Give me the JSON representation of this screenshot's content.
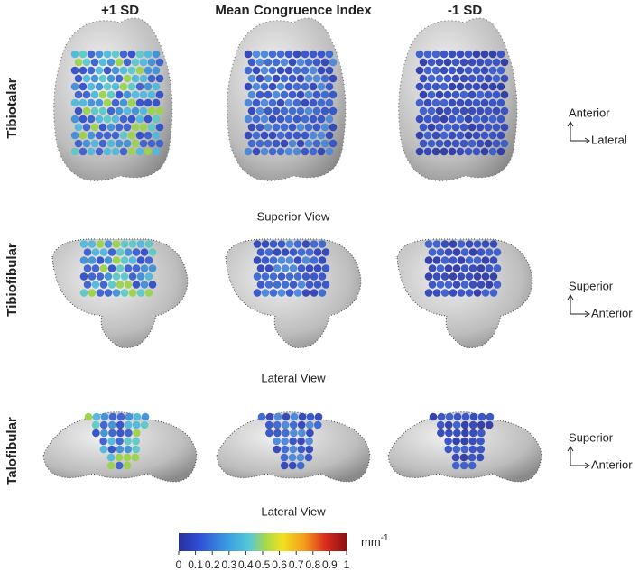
{
  "header": {
    "columns": [
      "+1 SD",
      "Mean Congruence Index",
      "-1 SD"
    ]
  },
  "rows": [
    {
      "label": "Tibiotalar",
      "view": "Superior View",
      "axis_up": "Anterior",
      "axis_right": "Lateral"
    },
    {
      "label": "Tibiofibular",
      "view": "Lateral View",
      "axis_up": "Superior",
      "axis_right": "Anterior"
    },
    {
      "label": "Talofibular",
      "view": "Lateral View",
      "axis_up": "Superior",
      "axis_right": "Anterior"
    }
  ],
  "colorbar": {
    "lim": [
      0,
      1
    ],
    "ticks": [
      0,
      0.1,
      0.2,
      0.3,
      0.4,
      0.5,
      0.6,
      0.7,
      0.8,
      0.9,
      1
    ],
    "unit": "mm",
    "unit_exponent": "-1"
  }
}
